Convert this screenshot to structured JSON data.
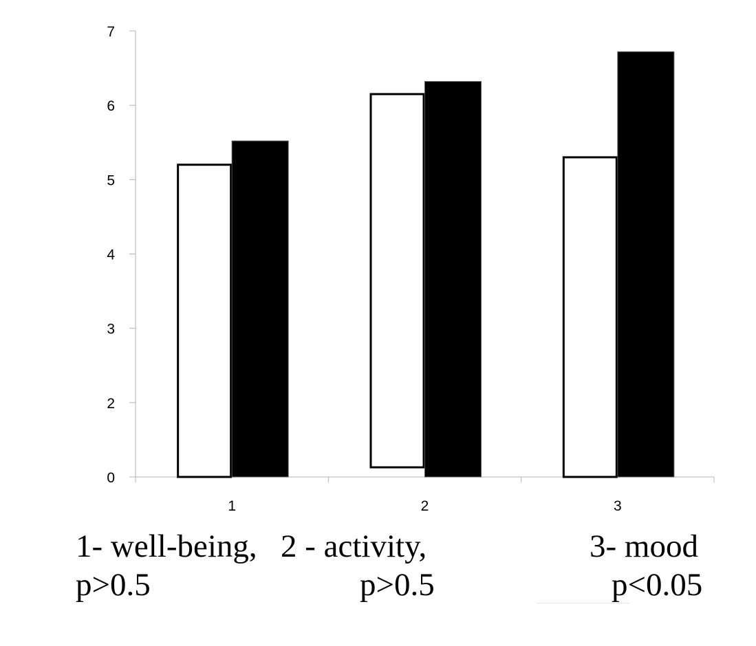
{
  "chart_data": {
    "type": "bar",
    "title": "",
    "xlabel": "",
    "ylabel": "",
    "categories": [
      "1",
      "2",
      "3"
    ],
    "y_ticks": [
      "0",
      "2",
      "3",
      "4",
      "5",
      "6",
      "7"
    ],
    "ylim": [
      1,
      7
    ],
    "axis_break_note": "bottom tick labelled 0 sits at the position of value 1",
    "grid": false,
    "series": [
      {
        "name": "white",
        "color": "#ffffff",
        "stroke": "#000000",
        "values": [
          5.2,
          6.15,
          5.3
        ]
      },
      {
        "name": "black",
        "color": "#000000",
        "stroke": "#000000",
        "values": [
          5.52,
          6.32,
          6.72
        ]
      }
    ]
  },
  "captions": {
    "line1": {
      "item1": "1- well-being,",
      "item2": "2 - activity,",
      "item3": "3- mood"
    },
    "line2": {
      "p1": "p>0.5",
      "p2": "p>0.5",
      "p3": "p<0.05"
    }
  }
}
